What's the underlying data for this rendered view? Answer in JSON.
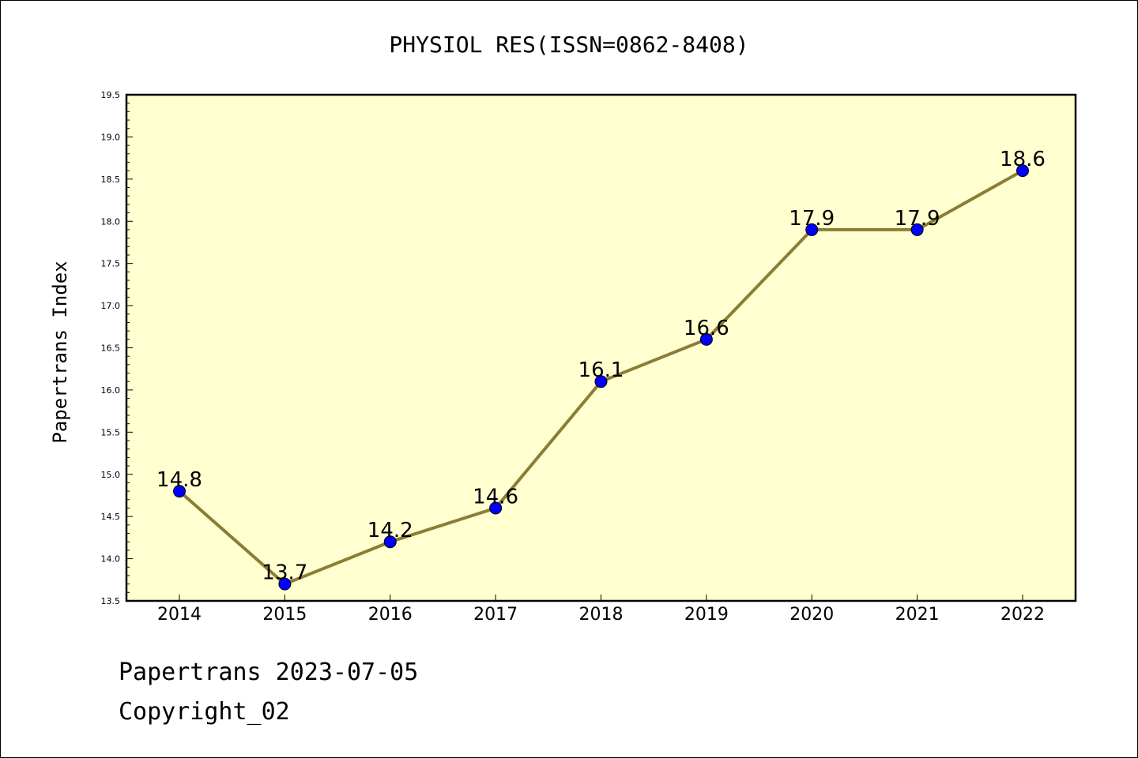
{
  "chart_data": {
    "type": "line",
    "title": "PHYSIOL RES(ISSN=0862-8408)",
    "xlabel": "",
    "ylabel": "Papertrans Index",
    "categories": [
      "2014",
      "2015",
      "2016",
      "2017",
      "2018",
      "2019",
      "2020",
      "2021",
      "2022"
    ],
    "series": [
      {
        "values": [
          14.8,
          13.7,
          14.2,
          14.6,
          16.1,
          16.6,
          17.9,
          17.9,
          18.6
        ],
        "labels": [
          "14.8",
          "13.7",
          "14.2",
          "14.6",
          "16.1",
          "16.6",
          "17.9",
          "17.9",
          "18.6"
        ]
      }
    ],
    "ylim": [
      13.5,
      19.5
    ],
    "yticks": [
      "13.5",
      "14.0",
      "14.5",
      "15.0",
      "15.5",
      "16.0",
      "16.5",
      "17.0",
      "17.5",
      "18.0",
      "18.5",
      "19.0",
      "19.5"
    ],
    "grid": false,
    "colors": {
      "plot_background": "#ffffd0",
      "line": "#8b7d35",
      "marker": "#0000ff"
    }
  },
  "footer": {
    "line1": "Papertrans 2023-07-05",
    "line2": "Copyright_02"
  }
}
